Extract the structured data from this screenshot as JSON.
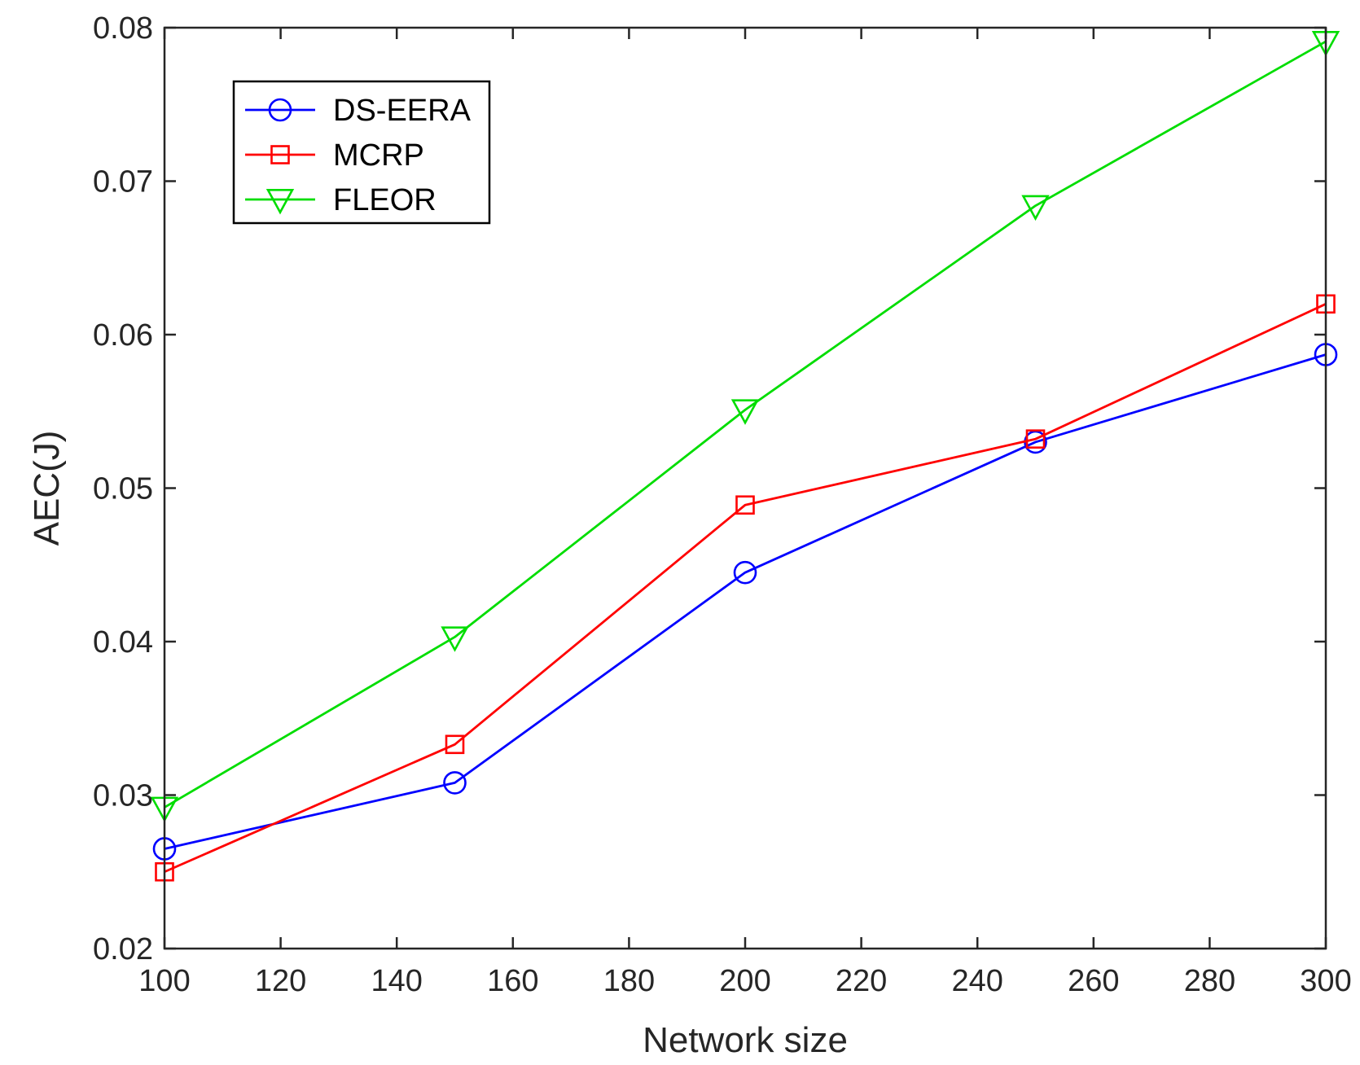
{
  "chart_data": {
    "type": "line",
    "xlabel": "Network size",
    "ylabel": "AEC(J)",
    "xlim": [
      100,
      300
    ],
    "ylim": [
      0.02,
      0.08
    ],
    "xticks": [
      100,
      120,
      140,
      160,
      180,
      200,
      220,
      240,
      260,
      280,
      300
    ],
    "yticks": [
      0.02,
      0.03,
      0.04,
      0.05,
      0.06,
      0.07,
      0.08
    ],
    "xtick_labels": [
      "100",
      "120",
      "140",
      "160",
      "180",
      "200",
      "220",
      "240",
      "260",
      "280",
      "300"
    ],
    "ytick_labels": [
      "0.02",
      "0.03",
      "0.04",
      "0.05",
      "0.06",
      "0.07",
      "0.08"
    ],
    "grid": false,
    "legend_position": "top-left",
    "x": [
      100,
      150,
      200,
      250,
      300
    ],
    "series": [
      {
        "name": "DS-EERA",
        "values": [
          0.0265,
          0.0308,
          0.0445,
          0.053,
          0.0587
        ],
        "color": "#0000ff",
        "marker": "circle"
      },
      {
        "name": "MCRP",
        "values": [
          0.025,
          0.0333,
          0.0489,
          0.0532,
          0.062
        ],
        "color": "#ff0000",
        "marker": "square"
      },
      {
        "name": "FLEOR",
        "values": [
          0.0292,
          0.0403,
          0.0551,
          0.0684,
          0.0791
        ],
        "color": "#00dd00",
        "marker": "triangle-down"
      }
    ]
  }
}
